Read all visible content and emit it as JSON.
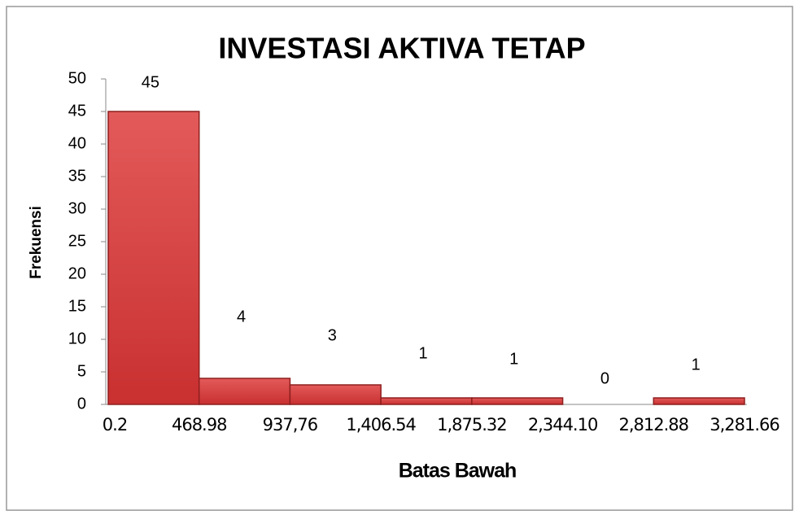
{
  "chart_data": {
    "type": "histogram",
    "title": "INVESTASI AKTIVA TETAP",
    "x_label": "Batas Bawah",
    "y_label": "Frekuensi",
    "bins": [
      0.2,
      468.98,
      937.76,
      1406.54,
      1875.32,
      2344.1,
      2812.88,
      3281.66
    ],
    "values": [
      45,
      4,
      3,
      1,
      1,
      0,
      1
    ],
    "color": "#d64242",
    "xlim": [
      0.2,
      3281.66
    ],
    "xticks": [
      0.2,
      468.98,
      {
        "value": 937.76,
        "label": "937,76"
      },
      {
        "value": 1406.54,
        "label": "1,406.54"
      },
      {
        "value": 1875.32,
        "label": "1,875.32"
      },
      {
        "value": 2344.1,
        "label": "2,344.10"
      },
      {
        "value": 2812.88,
        "label": "2,812.88"
      },
      {
        "value": 3281.66,
        "label": "3,281.66"
      }
    ],
    "ylim": [
      0,
      50
    ],
    "yticks": [
      0,
      5,
      10,
      15,
      20,
      25,
      30,
      35,
      40,
      45,
      50
    ],
    "grid": false
  }
}
